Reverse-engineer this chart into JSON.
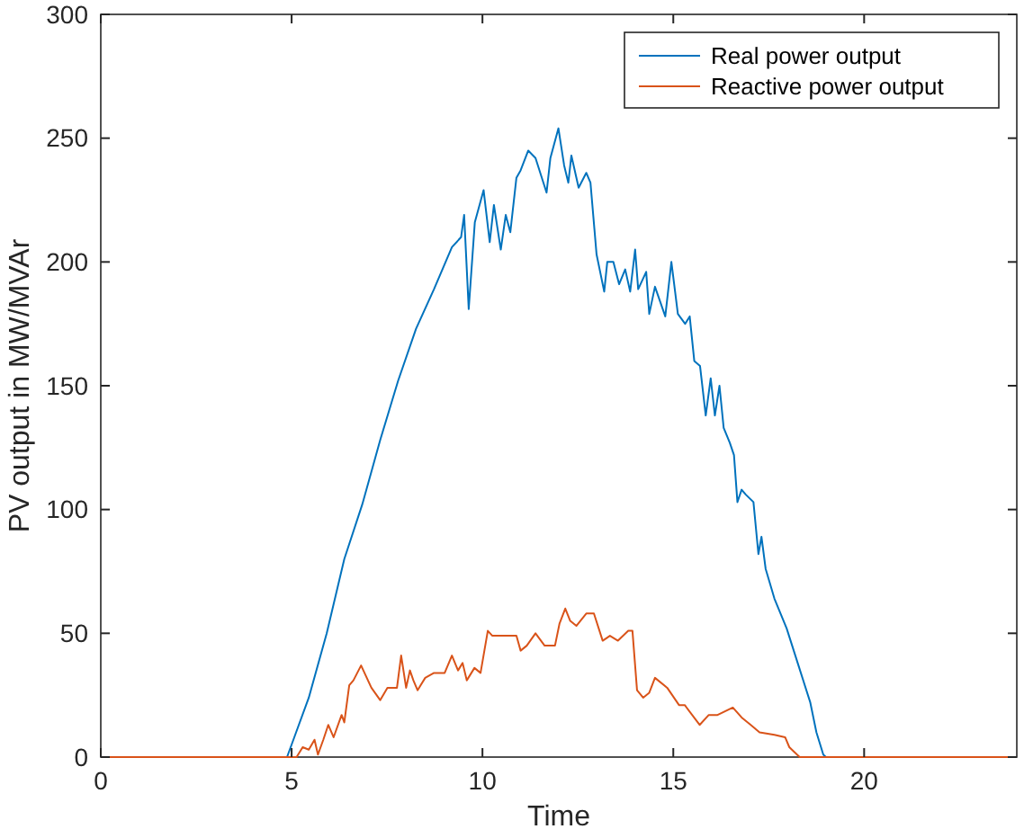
{
  "chart_data": {
    "type": "line",
    "xlabel": "Time",
    "ylabel": "PV output in MW/MVAr",
    "xlim": [
      0,
      24
    ],
    "xticks": [
      0,
      5,
      10,
      15,
      20
    ],
    "ylim": [
      0,
      300
    ],
    "yticks": [
      0,
      50,
      100,
      150,
      200,
      250,
      300
    ],
    "grid": false,
    "legend": "top right",
    "marker": "none",
    "line_style": "solid",
    "series": [
      {
        "name": "Real power output",
        "color": "#0072bd",
        "x": [
          0,
          4.88,
          5.07,
          5.45,
          5.92,
          6.38,
          6.85,
          7.32,
          7.79,
          8.26,
          8.73,
          9.2,
          9.44,
          9.52,
          9.64,
          9.8,
          10.03,
          10.19,
          10.3,
          10.48,
          10.61,
          10.73,
          10.89,
          11.0,
          11.2,
          11.39,
          11.68,
          11.78,
          11.99,
          12.14,
          12.25,
          12.33,
          12.52,
          12.72,
          12.83,
          12.99,
          13.19,
          13.27,
          13.43,
          13.58,
          13.74,
          13.87,
          14.0,
          14.08,
          14.29,
          14.37,
          14.52,
          14.79,
          14.95,
          15.12,
          15.31,
          15.43,
          15.55,
          15.7,
          15.85,
          15.98,
          16.09,
          16.21,
          16.32,
          16.48,
          16.59,
          16.68,
          16.79,
          16.9,
          17.1,
          17.23,
          17.31,
          17.42,
          17.65,
          17.97,
          18.28,
          18.59,
          18.75,
          18.93,
          19.0,
          24
        ],
        "values": [
          0,
          0,
          8,
          24,
          50,
          80,
          102,
          128,
          152,
          173,
          189,
          206,
          210,
          219,
          181,
          216,
          229,
          208,
          223,
          205,
          219,
          212,
          234,
          237,
          245,
          242,
          228,
          242,
          254,
          239,
          232,
          243,
          230,
          236,
          232,
          203,
          188,
          200,
          200,
          191,
          197,
          188,
          205,
          189,
          196,
          179,
          190,
          178,
          200,
          179,
          175,
          178,
          160,
          158,
          138,
          153,
          138,
          150,
          133,
          127,
          122,
          103,
          108,
          106,
          103,
          82,
          89,
          76,
          64,
          52,
          37,
          22,
          10,
          1,
          0,
          0
        ]
      },
      {
        "name": "Reactive power output",
        "color": "#d95319",
        "x": [
          0,
          5.13,
          5.29,
          5.45,
          5.6,
          5.69,
          5.83,
          5.96,
          6.1,
          6.31,
          6.38,
          6.51,
          6.62,
          6.82,
          7.09,
          7.32,
          7.51,
          7.76,
          7.87,
          8.0,
          8.1,
          8.19,
          8.3,
          8.5,
          8.73,
          9.01,
          9.2,
          9.36,
          9.48,
          9.59,
          9.79,
          9.95,
          10.14,
          10.26,
          10.61,
          10.89,
          11.0,
          11.16,
          11.39,
          11.63,
          11.9,
          12.02,
          12.17,
          12.3,
          12.46,
          12.72,
          12.92,
          13.15,
          13.34,
          13.55,
          13.82,
          13.93,
          14.05,
          14.21,
          14.37,
          14.52,
          14.84,
          15.15,
          15.3,
          15.69,
          15.93,
          16.16,
          16.56,
          16.79,
          17.03,
          17.26,
          17.65,
          17.93,
          18.04,
          18.31,
          24
        ],
        "values": [
          0,
          0,
          4,
          3,
          7,
          1,
          7,
          13,
          8,
          17,
          14,
          29,
          31,
          37,
          28,
          23,
          28,
          28,
          41,
          28,
          35,
          31,
          27,
          32,
          34,
          34,
          41,
          35,
          38,
          31,
          36,
          34,
          51,
          49,
          49,
          49,
          43,
          45,
          50,
          45,
          45,
          54,
          60,
          55,
          53,
          58,
          58,
          47,
          49,
          47,
          51,
          51,
          27,
          24,
          26,
          32,
          28,
          21,
          21,
          13,
          17,
          17,
          20,
          16,
          13,
          10,
          9,
          8,
          4,
          0,
          0
        ]
      }
    ]
  }
}
